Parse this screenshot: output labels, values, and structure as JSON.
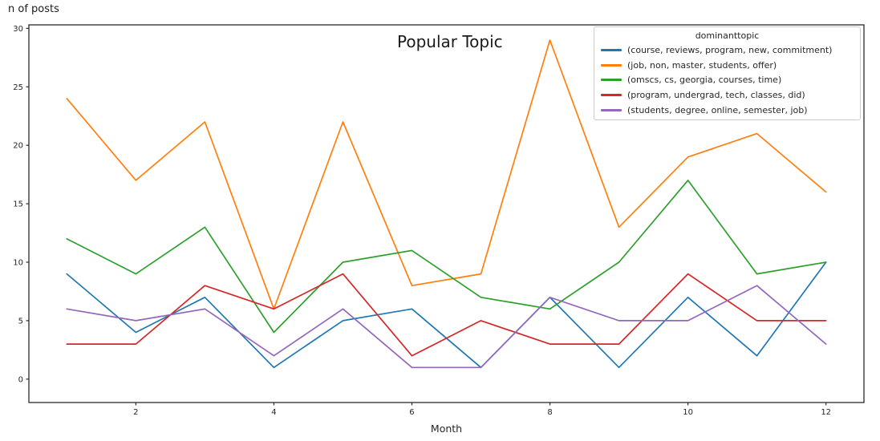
{
  "figure": {
    "top_left_label": "n of posts"
  },
  "chart_data": {
    "type": "line",
    "title": "Popular Topic",
    "ylabel": "n of posts",
    "xlabel": "Month",
    "x": [
      1,
      2,
      3,
      4,
      5,
      6,
      7,
      8,
      9,
      10,
      11,
      12
    ],
    "xticks": [
      2,
      4,
      6,
      8,
      10,
      12
    ],
    "yticks": [
      0,
      5,
      10,
      15,
      20,
      25,
      30
    ],
    "xlim": [
      0.45,
      12.55
    ],
    "ylim": [
      -2.0,
      30.3
    ],
    "grid": false,
    "background": "#ffffff",
    "spine_color": "#2b2b2b",
    "tick_label_color": "#262626",
    "legend": {
      "title": "dominanttopic",
      "position": "upper right"
    },
    "series": [
      {
        "name": "(course, reviews, program, new, commitment)",
        "color": "#1f77b4",
        "values": [
          9,
          4,
          7,
          1,
          5,
          6,
          1,
          7,
          1,
          7,
          2,
          10
        ]
      },
      {
        "name": "(job, non, master, students, offer)",
        "color": "#ff7f0e",
        "values": [
          24,
          17,
          22,
          6,
          22,
          8,
          9,
          29,
          13,
          19,
          21,
          16
        ]
      },
      {
        "name": "(omscs, cs, georgia, courses, time)",
        "color": "#2ca02c",
        "values": [
          12,
          9,
          13,
          4,
          10,
          11,
          7,
          6,
          10,
          17,
          9,
          10
        ]
      },
      {
        "name": "(program, undergrad, tech, classes, did)",
        "color": "#d62728",
        "values": [
          3,
          3,
          8,
          6,
          9,
          2,
          5,
          3,
          3,
          9,
          5,
          5
        ]
      },
      {
        "name": "(students, degree, online, semester, job)",
        "color": "#9467bd",
        "values": [
          6,
          5,
          6,
          2,
          6,
          1,
          1,
          7,
          5,
          5,
          8,
          3
        ]
      }
    ]
  }
}
